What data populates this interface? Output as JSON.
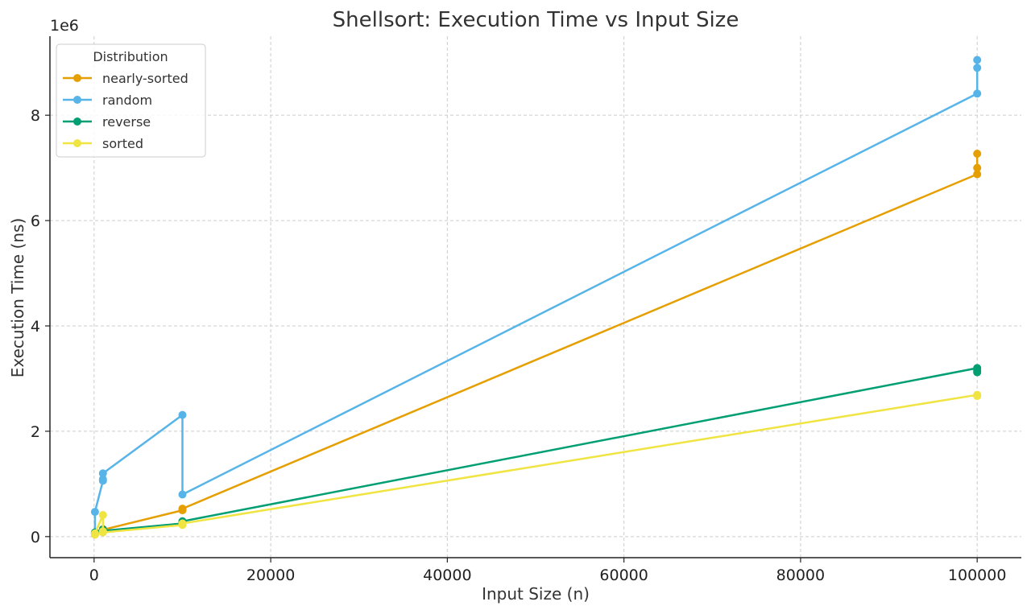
{
  "chart_data": {
    "type": "line",
    "title": "Shellsort: Execution Time vs Input Size",
    "xlabel": "Input Size (n)",
    "ylabel": "Execution Time (ns)",
    "y_offset_label": "1e6",
    "xlim": [
      -5000,
      105000
    ],
    "ylim": [
      -400000,
      9500000
    ],
    "x_ticks": [
      0,
      20000,
      40000,
      60000,
      80000,
      100000
    ],
    "x_tick_labels": [
      "0",
      "20000",
      "40000",
      "60000",
      "80000",
      "100000"
    ],
    "y_ticks": [
      0,
      2000000,
      4000000,
      6000000,
      8000000
    ],
    "y_tick_labels": [
      "0",
      "2",
      "4",
      "6",
      "8"
    ],
    "grid": true,
    "legend": {
      "title": "Distribution",
      "placement": "top-left"
    },
    "series": [
      {
        "name": "nearly-sorted",
        "color": "#E69F00",
        "points": [
          [
            100,
            40000
          ],
          [
            100,
            60000
          ],
          [
            100,
            70000
          ],
          [
            1000,
            110000
          ],
          [
            1000,
            140000
          ],
          [
            1000,
            130000
          ],
          [
            10000,
            500000
          ],
          [
            10000,
            520000
          ],
          [
            10000,
            530000
          ],
          [
            100000,
            6880000
          ],
          [
            100000,
            7000000
          ],
          [
            100000,
            7270000
          ]
        ]
      },
      {
        "name": "random",
        "color": "#56B4E9",
        "points": [
          [
            100,
            70000
          ],
          [
            100,
            470000
          ],
          [
            1000,
            1060000
          ],
          [
            1000,
            1090000
          ],
          [
            1000,
            1200000
          ],
          [
            10000,
            2310000
          ],
          [
            10000,
            800000
          ],
          [
            100000,
            8410000
          ],
          [
            100000,
            8900000
          ],
          [
            100000,
            9050000
          ]
        ]
      },
      {
        "name": "reverse",
        "color": "#009E73",
        "points": [
          [
            100,
            60000
          ],
          [
            100,
            70000
          ],
          [
            100,
            80000
          ],
          [
            1000,
            140000
          ],
          [
            1000,
            120000
          ],
          [
            1000,
            110000
          ],
          [
            10000,
            250000
          ],
          [
            10000,
            280000
          ],
          [
            10000,
            290000
          ],
          [
            100000,
            3200000
          ],
          [
            100000,
            3150000
          ],
          [
            100000,
            3120000
          ]
        ]
      },
      {
        "name": "sorted",
        "color": "#F0E442",
        "points": [
          [
            100,
            40000
          ],
          [
            100,
            50000
          ],
          [
            100,
            60000
          ],
          [
            1000,
            410000
          ],
          [
            1000,
            100000
          ],
          [
            1000,
            80000
          ],
          [
            10000,
            220000
          ],
          [
            10000,
            240000
          ],
          [
            10000,
            250000
          ],
          [
            100000,
            2690000
          ],
          [
            100000,
            2680000
          ],
          [
            100000,
            2670000
          ]
        ]
      }
    ]
  }
}
